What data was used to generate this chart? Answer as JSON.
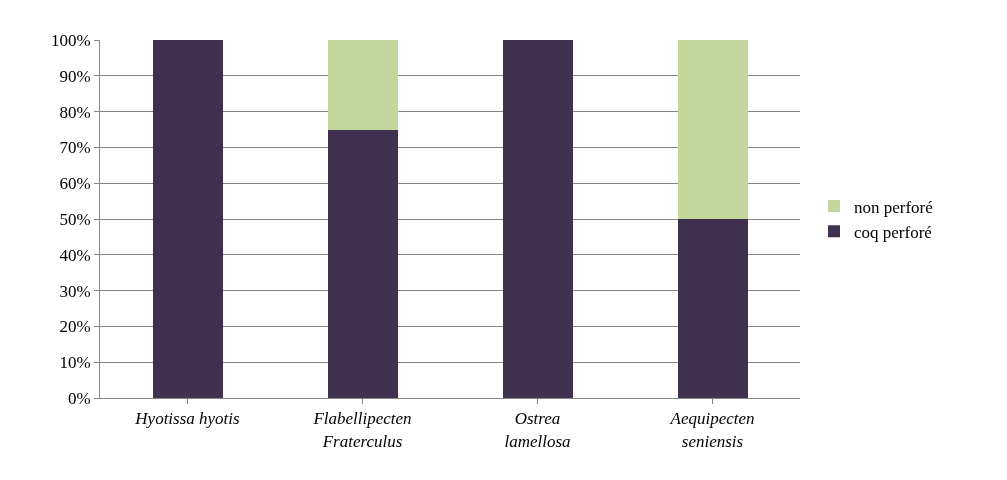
{
  "chart_data": {
    "type": "bar",
    "stacked": true,
    "categories": [
      "Hyotissa hyotis",
      "Flabellipecten\nFraterculus",
      "Ostrea\nlamellosa",
      "Aequipecten\nseniensis"
    ],
    "series": [
      {
        "name": "coq perforé",
        "color": "#403151",
        "values": [
          100,
          75,
          100,
          50
        ]
      },
      {
        "name": "non perforé",
        "color": "#c3d69b",
        "values": [
          0,
          25,
          0,
          50
        ]
      }
    ],
    "ylim": [
      0,
      100
    ],
    "yticks": [
      {
        "value": 0,
        "label": "0%"
      },
      {
        "value": 10,
        "label": "10%"
      },
      {
        "value": 20,
        "label": "20%"
      },
      {
        "value": 30,
        "label": "30%"
      },
      {
        "value": 40,
        "label": "40%"
      },
      {
        "value": 50,
        "label": "50%"
      },
      {
        "value": 60,
        "label": "60%"
      },
      {
        "value": 70,
        "label": "70%"
      },
      {
        "value": 80,
        "label": "80%"
      },
      {
        "value": 90,
        "label": "90%"
      },
      {
        "value": 100,
        "label": "100%"
      }
    ],
    "grid": "y",
    "legend": "right"
  }
}
